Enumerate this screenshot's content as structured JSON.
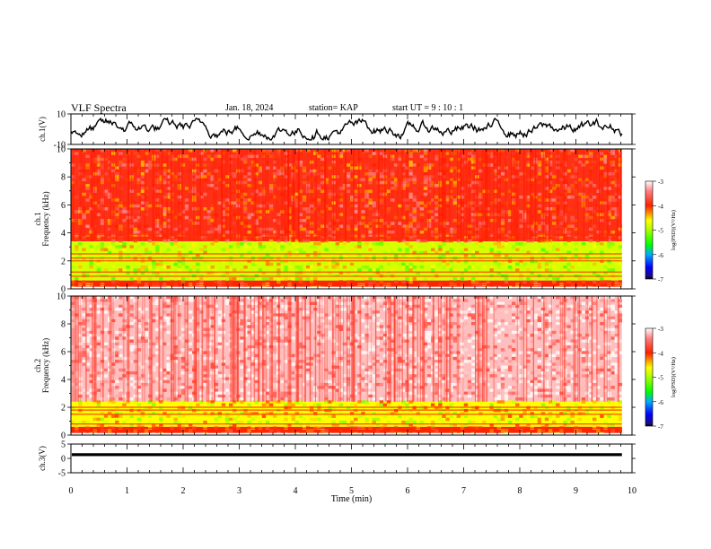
{
  "header": {
    "title": "VLF Spectra",
    "date": "Jan. 18, 2024",
    "station": "station= KAP",
    "start": "start  UT =   9 : 10 : 1"
  },
  "chart_data": [
    {
      "type": "line",
      "panel": "ch1-waveform",
      "ylabel": "ch.1(V)",
      "ylim": [
        -10,
        10
      ],
      "yticks": [
        "10",
        "-10"
      ],
      "xlim": [
        0,
        10
      ],
      "x_data_end": 9.82,
      "series": [
        {
          "amplitude_range": [
            -7,
            7
          ]
        }
      ]
    },
    {
      "type": "heatmap",
      "panel": "ch1-spectrogram",
      "ylabel": "ch.1\nFrequency (kHz)",
      "ylim": [
        0,
        10
      ],
      "yticks": [
        "0",
        "2",
        "4",
        "6",
        "8",
        "10"
      ],
      "xlim": [
        0,
        10
      ],
      "colorbar": {
        "label": "log(PSD)(V²/Hz)",
        "range": [
          -7,
          -3
        ],
        "ticks": [
          "-3",
          "-4",
          "-5",
          "-6",
          "-7"
        ]
      },
      "dominant_levels": [
        {
          "freq_range": [
            0,
            0.6
          ],
          "value": -4
        },
        {
          "freq_range": [
            0.6,
            3.4
          ],
          "value": -4.8
        },
        {
          "freq_range": [
            3.4,
            10
          ],
          "value": -3.9
        }
      ]
    },
    {
      "type": "heatmap",
      "panel": "ch2-spectrogram",
      "ylabel": "ch.2\nFrequency (kHz)",
      "ylim": [
        0,
        10
      ],
      "yticks": [
        "0",
        "2",
        "4",
        "6",
        "8",
        "10"
      ],
      "xlim": [
        0,
        10
      ],
      "colorbar": {
        "label": "log(PSD)(V²/Hz)",
        "range": [
          -7,
          -3
        ],
        "ticks": [
          "-3",
          "-4",
          "-5",
          "-6",
          "-7"
        ]
      },
      "dominant_levels": [
        {
          "freq_range": [
            0,
            0.6
          ],
          "value": -4
        },
        {
          "freq_range": [
            0.6,
            2.4
          ],
          "value": -4.6
        },
        {
          "freq_range": [
            2.4,
            10
          ],
          "value": -3.2
        }
      ]
    },
    {
      "type": "line",
      "panel": "ch3-waveform",
      "ylabel": "ch.3(V)",
      "ylim": [
        -5,
        5
      ],
      "yticks": [
        "5",
        "0",
        "-5"
      ],
      "xlim": [
        0,
        10
      ],
      "xlabel": "Time (min)",
      "xticks": [
        "0",
        "1",
        "2",
        "3",
        "4",
        "5",
        "6",
        "7",
        "8",
        "9",
        "10"
      ],
      "series": [
        {
          "amplitude_range": [
            0.8,
            1.8
          ]
        }
      ]
    }
  ]
}
